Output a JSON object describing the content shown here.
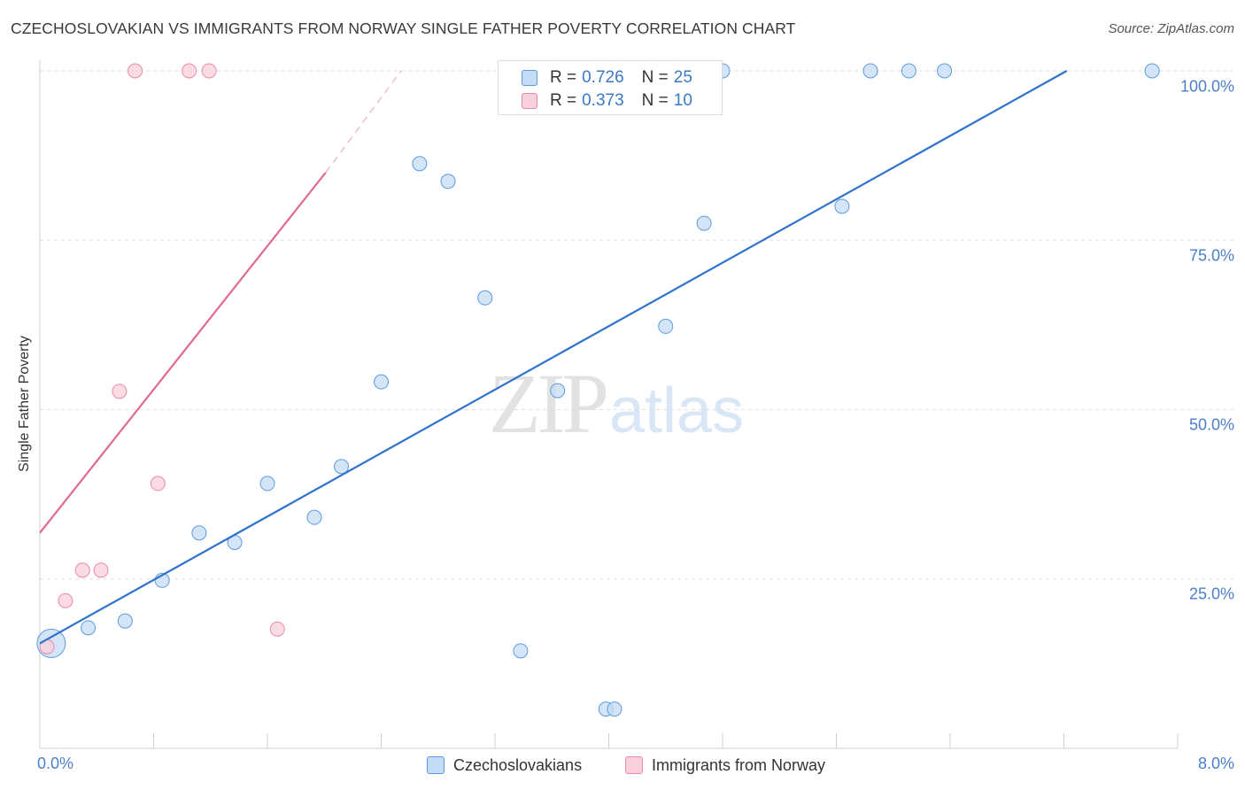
{
  "header": {
    "title": "CZECHOSLOVAKIAN VS IMMIGRANTS FROM NORWAY SINGLE FATHER POVERTY CORRELATION CHART",
    "source": "Source: ZipAtlas.com"
  },
  "watermark": {
    "zip": "ZIP",
    "atlas": "atlas"
  },
  "legend_top": {
    "rows": [
      {
        "r_label": "R = ",
        "r_value": "0.726",
        "n_label": "N = ",
        "n_value": "25"
      },
      {
        "r_label": "R = ",
        "r_value": "0.373",
        "n_label": "N = ",
        "n_value": "10"
      }
    ]
  },
  "chart_data": {
    "type": "scatter",
    "title": "CZECHOSLOVAKIAN VS IMMIGRANTS FROM NORWAY SINGLE FATHER POVERTY CORRELATION CHART",
    "xlabel": "",
    "ylabel": "Single Father Poverty",
    "xlim": [
      0,
      8
    ],
    "ylim": [
      0,
      100
    ],
    "x_tick_labels": [
      "0.0%",
      "8.0%"
    ],
    "y_ticks": [
      25,
      50,
      75,
      100
    ],
    "y_tick_labels": [
      "25.0%",
      "50.0%",
      "75.0%",
      "100.0%"
    ],
    "grid": true,
    "series": [
      {
        "name": "Czechoslovakians",
        "color": "#5b9be0",
        "fill": "#c5dcf6",
        "r": 0.726,
        "n": 25,
        "trend": {
          "x": [
            0,
            7.22
          ],
          "y": [
            15.5,
            100
          ]
        },
        "points": [
          {
            "x": 0.08,
            "y": 15.5,
            "big": true
          },
          {
            "x": 0.34,
            "y": 17.8
          },
          {
            "x": 0.6,
            "y": 18.8
          },
          {
            "x": 0.86,
            "y": 24.8
          },
          {
            "x": 1.12,
            "y": 31.8
          },
          {
            "x": 1.37,
            "y": 30.4
          },
          {
            "x": 1.6,
            "y": 39.1
          },
          {
            "x": 1.93,
            "y": 34.1
          },
          {
            "x": 2.12,
            "y": 41.6
          },
          {
            "x": 2.4,
            "y": 54.1
          },
          {
            "x": 2.67,
            "y": 86.3
          },
          {
            "x": 2.87,
            "y": 83.7
          },
          {
            "x": 3.13,
            "y": 66.5
          },
          {
            "x": 3.38,
            "y": 14.4
          },
          {
            "x": 3.64,
            "y": 52.8
          },
          {
            "x": 3.98,
            "y": 5.8
          },
          {
            "x": 4.04,
            "y": 5.8
          },
          {
            "x": 4.4,
            "y": 62.3
          },
          {
            "x": 4.67,
            "y": 77.5
          },
          {
            "x": 4.8,
            "y": 100
          },
          {
            "x": 5.64,
            "y": 80.0
          },
          {
            "x": 5.84,
            "y": 100
          },
          {
            "x": 6.11,
            "y": 100
          },
          {
            "x": 6.36,
            "y": 100
          },
          {
            "x": 7.82,
            "y": 100
          }
        ]
      },
      {
        "name": "Immigrants from Norway",
        "color": "#e88aa5",
        "fill": "#f9d0dc",
        "r": 0.373,
        "n": 10,
        "trend": {
          "x": [
            0,
            2.01
          ],
          "y": [
            31.8,
            85.0
          ]
        },
        "trend_dashed": {
          "x": [
            2.01,
            2.54
          ],
          "y": [
            85.0,
            100
          ]
        },
        "points": [
          {
            "x": 0.05,
            "y": 15.0
          },
          {
            "x": 0.18,
            "y": 21.8
          },
          {
            "x": 0.3,
            "y": 26.3
          },
          {
            "x": 0.43,
            "y": 26.3
          },
          {
            "x": 0.56,
            "y": 52.7
          },
          {
            "x": 0.67,
            "y": 100
          },
          {
            "x": 0.83,
            "y": 39.1
          },
          {
            "x": 1.05,
            "y": 100
          },
          {
            "x": 1.19,
            "y": 100
          },
          {
            "x": 1.67,
            "y": 17.6
          }
        ]
      }
    ]
  }
}
